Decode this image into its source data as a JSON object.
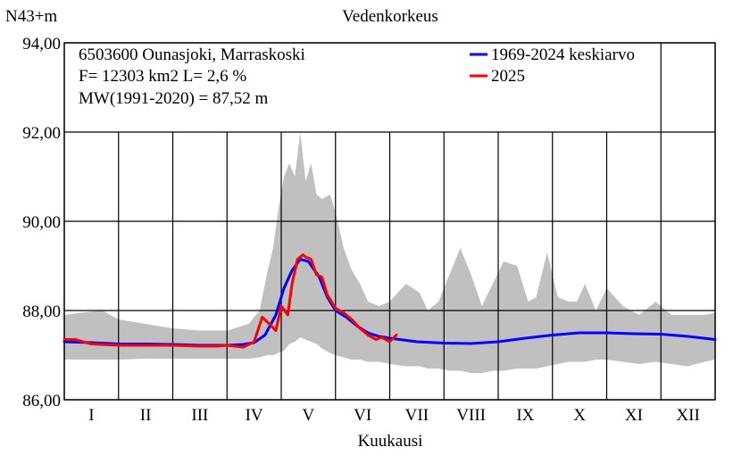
{
  "chart_data": {
    "type": "line",
    "title": "Vedenkorkeus",
    "ylabel": "N43+m",
    "xlabel": "Kuukausi",
    "ylim": [
      86,
      94
    ],
    "y_ticks": [
      "86,00",
      "88,00",
      "90,00",
      "92,00",
      "94,00"
    ],
    "y_tick_values": [
      86,
      88,
      90,
      92,
      94
    ],
    "months": [
      "I",
      "II",
      "III",
      "IV",
      "V",
      "VI",
      "VII",
      "VIII",
      "IX",
      "X",
      "XI",
      "XII"
    ],
    "x_unit_note": "x values are fractional months from 0 (start of January) to 12 (end of December)",
    "info_lines": [
      "6503600 Ounasjoki, Marraskoski",
      "F=  12303 km2 L=  2,6 %",
      "MW(1991-2020) = 87,52 m"
    ],
    "legend_position": "top-right",
    "grid": true,
    "colors": {
      "mean": "#0000ff",
      "current": "#ff0000",
      "band": "#c0c0c0",
      "grid": "#000000"
    },
    "series": [
      {
        "name": "1969-2024 keskiarvo",
        "color": "#0000ff",
        "x": [
          0,
          0.5,
          1.0,
          1.5,
          2.0,
          2.5,
          3.0,
          3.3,
          3.5,
          3.7,
          3.9,
          4.05,
          4.2,
          4.35,
          4.5,
          4.7,
          4.85,
          5.0,
          5.2,
          5.4,
          5.6,
          5.8,
          6.0,
          6.5,
          7.0,
          7.5,
          8.0,
          8.5,
          9.0,
          9.5,
          10.0,
          10.5,
          11.0,
          11.5,
          12.0
        ],
        "values": [
          87.3,
          87.28,
          87.25,
          87.25,
          87.24,
          87.22,
          87.22,
          87.24,
          87.28,
          87.45,
          87.9,
          88.5,
          88.9,
          89.15,
          89.1,
          88.75,
          88.3,
          88.0,
          87.85,
          87.65,
          87.5,
          87.42,
          87.38,
          87.3,
          87.27,
          87.26,
          87.3,
          87.38,
          87.45,
          87.5,
          87.5,
          87.48,
          87.47,
          87.42,
          87.35
        ]
      },
      {
        "name": "2025",
        "color": "#ff0000",
        "x": [
          0,
          0.2,
          0.5,
          1.0,
          1.5,
          2.0,
          2.5,
          2.8,
          3.0,
          3.3,
          3.5,
          3.65,
          3.78,
          3.9,
          4.0,
          4.12,
          4.2,
          4.3,
          4.4,
          4.45,
          4.55,
          4.65,
          4.75,
          4.85,
          5.0,
          5.15,
          5.3,
          5.45,
          5.6,
          5.75,
          5.85,
          6.0,
          6.12
        ],
        "values": [
          87.35,
          87.35,
          87.25,
          87.22,
          87.22,
          87.22,
          87.2,
          87.2,
          87.22,
          87.18,
          87.3,
          87.85,
          87.7,
          87.55,
          88.1,
          87.9,
          88.6,
          89.15,
          89.25,
          89.2,
          89.15,
          88.8,
          88.75,
          88.35,
          88.05,
          87.95,
          87.8,
          87.6,
          87.45,
          87.35,
          87.4,
          87.3,
          87.45
        ]
      }
    ],
    "band": {
      "x": [
        0,
        0.3,
        0.7,
        1.0,
        1.5,
        2.0,
        2.5,
        3.0,
        3.4,
        3.6,
        3.75,
        3.85,
        3.95,
        4.05,
        4.15,
        4.25,
        4.35,
        4.45,
        4.55,
        4.65,
        4.75,
        4.9,
        5.0,
        5.15,
        5.3,
        5.45,
        5.6,
        5.8,
        6.0,
        6.3,
        6.55,
        6.7,
        6.9,
        7.1,
        7.3,
        7.5,
        7.7,
        7.9,
        8.1,
        8.35,
        8.55,
        8.7,
        8.9,
        9.1,
        9.3,
        9.45,
        9.6,
        9.8,
        10.0,
        10.3,
        10.6,
        10.9,
        11.2,
        11.5,
        11.8,
        12.0
      ],
      "upper": [
        87.9,
        87.95,
        88.0,
        87.8,
        87.7,
        87.6,
        87.55,
        87.55,
        87.7,
        88.0,
        88.9,
        89.4,
        90.3,
        91.0,
        91.3,
        91.0,
        92.0,
        90.9,
        91.3,
        90.6,
        90.5,
        90.6,
        90.2,
        89.4,
        88.9,
        88.6,
        88.2,
        88.1,
        88.2,
        88.6,
        88.4,
        88.0,
        88.2,
        88.8,
        89.4,
        88.8,
        88.1,
        88.6,
        89.1,
        89.0,
        88.2,
        88.3,
        89.3,
        88.3,
        88.2,
        88.2,
        88.6,
        88.0,
        88.5,
        88.1,
        87.9,
        88.2,
        87.9,
        87.9,
        87.9,
        87.95
      ],
      "lower": [
        86.9,
        86.9,
        86.9,
        86.9,
        86.92,
        86.92,
        86.92,
        86.92,
        86.92,
        86.95,
        87.0,
        87.0,
        87.05,
        87.1,
        87.25,
        87.3,
        87.4,
        87.35,
        87.3,
        87.25,
        87.15,
        87.05,
        87.0,
        86.95,
        86.9,
        86.9,
        86.85,
        86.85,
        86.8,
        86.75,
        86.75,
        86.7,
        86.7,
        86.65,
        86.65,
        86.6,
        86.6,
        86.65,
        86.65,
        86.7,
        86.7,
        86.7,
        86.75,
        86.8,
        86.85,
        86.85,
        86.85,
        86.9,
        86.9,
        86.85,
        86.8,
        86.85,
        86.8,
        86.75,
        86.85,
        86.9
      ]
    }
  }
}
